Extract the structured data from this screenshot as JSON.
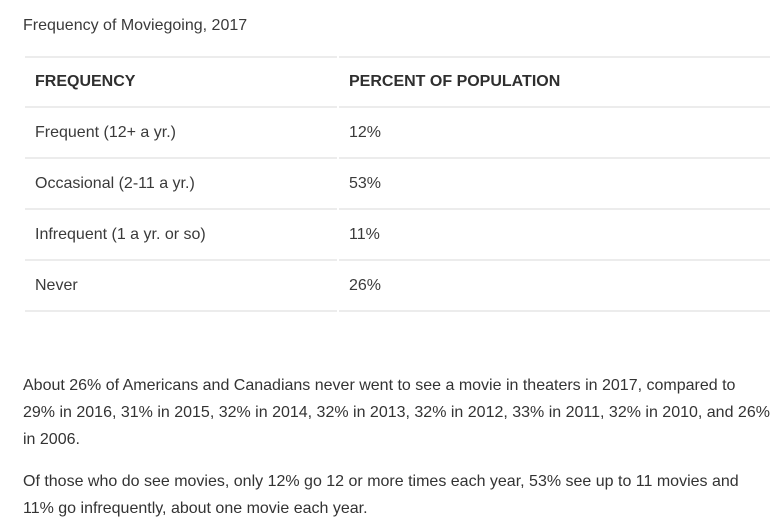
{
  "caption": "Frequency of Moviegoing, 2017",
  "table": {
    "headers": [
      "FREQUENCY",
      "PERCENT OF POPULATION"
    ],
    "rows": [
      [
        "Frequent (12+ a yr.)",
        "12%"
      ],
      [
        "Occasional (2-11 a yr.)",
        "53%"
      ],
      [
        "Infrequent (1 a yr. or so)",
        "11%"
      ],
      [
        "Never",
        "26%"
      ]
    ]
  },
  "paragraphs": [
    "About 26% of Americans and Canadians never went to see a movie in theaters in 2017, compared to 29% in 2016, 31% in 2015, 32% in 2014, 32% in 2013, 32% in 2012, 33% in 2011, 32% in 2010, and 26% in 2006.",
    "Of those who do see movies, only 12% go 12 or more times each year, 53% see up to 11 movies and 11% go infrequently, about one movie each year."
  ]
}
